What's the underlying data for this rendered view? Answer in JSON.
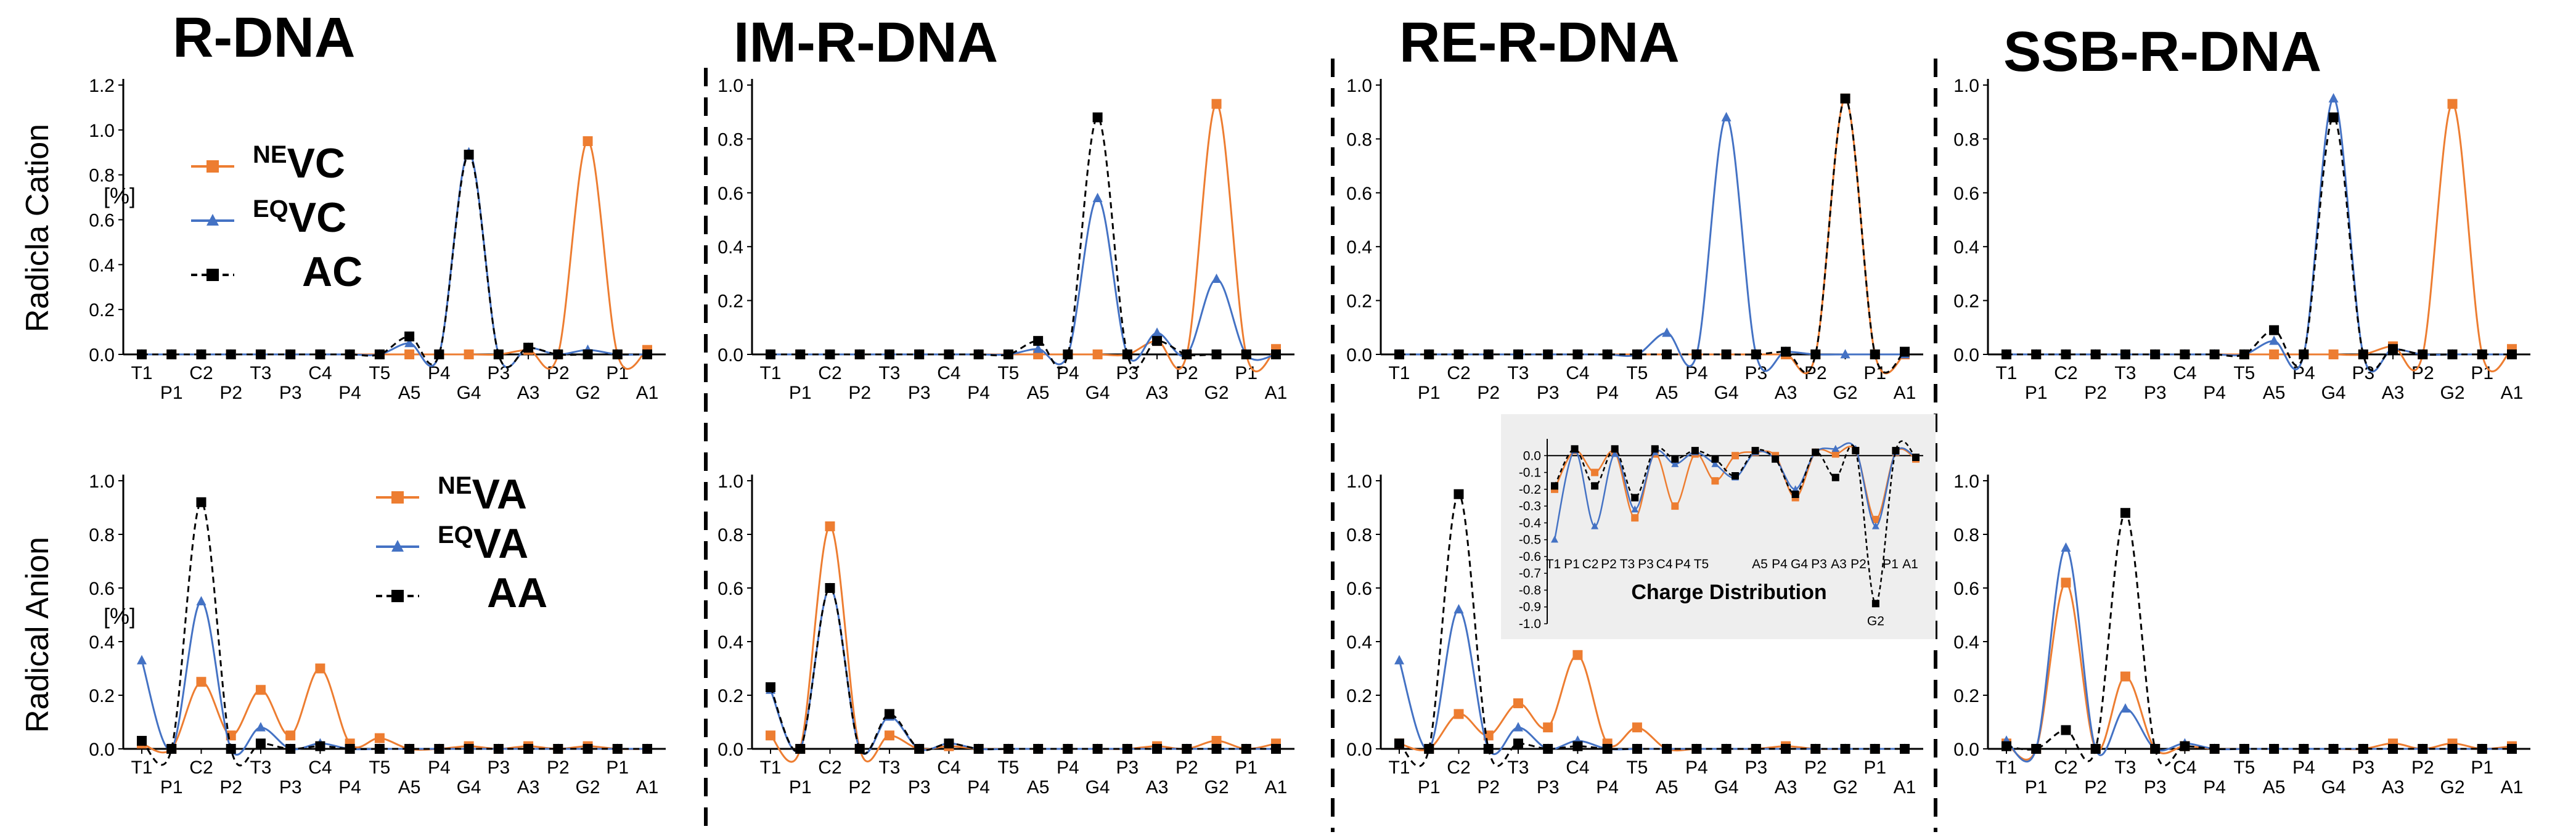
{
  "panel_titles": [
    "R-DNA",
    "IM-R-DNA",
    "RE-R-DNA",
    "SSB-R-DNA"
  ],
  "row_labels": [
    "Radicla Cation",
    "Radical Anion"
  ],
  "unit": "[%]",
  "legend_cation": [
    {
      "sup": "NE",
      "base": "VC"
    },
    {
      "sup": "EQ",
      "base": "VC"
    },
    {
      "sup": "",
      "base": "AC"
    }
  ],
  "legend_anion": [
    {
      "sup": "NE",
      "base": "VA"
    },
    {
      "sup": "EQ",
      "base": "VA"
    },
    {
      "sup": "",
      "base": "AA"
    }
  ],
  "colors": {
    "NE": "#ED7D31",
    "EQ": "#4472C4",
    "A": "#000000"
  },
  "chart_data": {
    "type": "line",
    "x": [
      "T1",
      "P1",
      "C2",
      "P2",
      "T3",
      "P3",
      "C4",
      "P4",
      "T5",
      "A5",
      "P4",
      "G4",
      "P3",
      "A3",
      "P2",
      "G2",
      "P1",
      "A1"
    ],
    "row_ylim": [
      [
        0,
        1.2
      ],
      [
        0,
        1.0
      ]
    ],
    "panels": [
      {
        "row": 0,
        "col": 0,
        "panel": "R-DNA",
        "ylim": [
          0,
          1.2
        ],
        "y_ticks": [
          "0.0",
          "0.2",
          "0.4",
          "0.6",
          "0.8",
          "1.0",
          "1.2"
        ],
        "series": {
          "NE": [
            0,
            0,
            0,
            0,
            0,
            0,
            0,
            0,
            0,
            0,
            0,
            0,
            0,
            0.02,
            0,
            0.95,
            0,
            0.02
          ],
          "EQ": [
            0,
            0,
            0,
            0,
            0,
            0,
            0,
            0,
            0,
            0.05,
            0,
            0.9,
            0,
            0.03,
            0,
            0.02,
            0,
            0
          ],
          "A": [
            0,
            0,
            0,
            0,
            0,
            0,
            0,
            0,
            0,
            0.08,
            0,
            0.89,
            0,
            0.03,
            0,
            0,
            0,
            0
          ]
        }
      },
      {
        "row": 0,
        "col": 1,
        "panel": "IM-R-DNA",
        "ylim": [
          0,
          1.0
        ],
        "y_ticks": [
          "0.0",
          "0.2",
          "0.4",
          "0.6",
          "0.8",
          "1.0"
        ],
        "series": {
          "NE": [
            0,
            0,
            0,
            0,
            0,
            0,
            0,
            0,
            0,
            0,
            0,
            0,
            0,
            0.05,
            0,
            0.93,
            0,
            0.02
          ],
          "EQ": [
            0,
            0,
            0,
            0,
            0,
            0,
            0,
            0,
            0,
            0.02,
            0,
            0.58,
            0,
            0.08,
            0,
            0.28,
            0,
            0
          ],
          "A": [
            0,
            0,
            0,
            0,
            0,
            0,
            0,
            0,
            0,
            0.05,
            0,
            0.88,
            0,
            0.05,
            0,
            0,
            0,
            0
          ]
        }
      },
      {
        "row": 0,
        "col": 2,
        "panel": "RE-R-DNA",
        "ylim": [
          0,
          1.0
        ],
        "y_ticks": [
          "0.0",
          "0.2",
          "0.4",
          "0.6",
          "0.8",
          "1.0"
        ],
        "series": {
          "NE": [
            0,
            0,
            0,
            0,
            0,
            0,
            0,
            0,
            0,
            0,
            0,
            0,
            0,
            0,
            0,
            0.95,
            0,
            0
          ],
          "EQ": [
            0,
            0,
            0,
            0,
            0,
            0,
            0,
            0,
            0,
            0.08,
            0,
            0.88,
            0,
            0.01,
            0,
            0,
            0,
            0
          ],
          "A": [
            0,
            0,
            0,
            0,
            0,
            0,
            0,
            0,
            0,
            0,
            0,
            0,
            0,
            0.01,
            0,
            0.95,
            0,
            0.01
          ]
        }
      },
      {
        "row": 0,
        "col": 3,
        "panel": "SSB-R-DNA",
        "ylim": [
          0,
          1.0
        ],
        "y_ticks": [
          "0.0",
          "0.2",
          "0.4",
          "0.6",
          "0.8",
          "1.0"
        ],
        "series": {
          "NE": [
            0,
            0,
            0,
            0,
            0,
            0,
            0,
            0,
            0,
            0,
            0,
            0,
            0,
            0.03,
            0,
            0.93,
            0,
            0.02
          ],
          "EQ": [
            0,
            0,
            0,
            0,
            0,
            0,
            0,
            0,
            0,
            0.05,
            0,
            0.95,
            0,
            0.02,
            0,
            0,
            0,
            0
          ],
          "A": [
            0,
            0,
            0,
            0,
            0,
            0,
            0,
            0,
            0,
            0.09,
            0,
            0.88,
            0,
            0.02,
            0,
            0,
            0,
            0
          ]
        }
      },
      {
        "row": 1,
        "col": 0,
        "panel": "R-DNA",
        "ylim": [
          0,
          1.0
        ],
        "y_ticks": [
          "0.0",
          "0.2",
          "0.4",
          "0.6",
          "0.8",
          "1.0"
        ],
        "series": {
          "NE": [
            0.02,
            0,
            0.25,
            0.05,
            0.22,
            0.05,
            0.3,
            0.02,
            0.04,
            0,
            0,
            0.01,
            0,
            0.01,
            0,
            0.01,
            0,
            0
          ],
          "EQ": [
            0.33,
            0,
            0.55,
            0,
            0.08,
            0,
            0.02,
            0,
            0,
            0,
            0,
            0,
            0,
            0,
            0,
            0,
            0,
            0
          ],
          "A": [
            0.03,
            0,
            0.92,
            0,
            0.02,
            0,
            0.01,
            0,
            0,
            0,
            0,
            0,
            0,
            0,
            0,
            0,
            0,
            0
          ]
        }
      },
      {
        "row": 1,
        "col": 1,
        "panel": "IM-R-DNA",
        "ylim": [
          0,
          1.0
        ],
        "y_ticks": [
          "0.0",
          "0.2",
          "0.4",
          "0.6",
          "0.8",
          "1.0"
        ],
        "series": {
          "NE": [
            0.05,
            0,
            0.83,
            0,
            0.05,
            0,
            0.01,
            0,
            0,
            0,
            0,
            0,
            0,
            0.01,
            0,
            0.03,
            0,
            0.02
          ],
          "EQ": [
            0.22,
            0,
            0.6,
            0,
            0.12,
            0,
            0.02,
            0,
            0,
            0,
            0,
            0,
            0,
            0,
            0,
            0,
            0,
            0
          ],
          "A": [
            0.23,
            0,
            0.6,
            0,
            0.13,
            0,
            0.02,
            0,
            0,
            0,
            0,
            0,
            0,
            0,
            0,
            0,
            0,
            0
          ]
        }
      },
      {
        "row": 1,
        "col": 2,
        "panel": "RE-R-DNA",
        "ylim": [
          0,
          1.0
        ],
        "y_ticks": [
          "0.0",
          "0.2",
          "0.4",
          "0.6",
          "0.8",
          "1.0"
        ],
        "series": {
          "NE": [
            0.02,
            0,
            0.13,
            0.05,
            0.17,
            0.08,
            0.35,
            0.02,
            0.08,
            0,
            0,
            0,
            0,
            0.01,
            0,
            0,
            0,
            0
          ],
          "EQ": [
            0.33,
            0,
            0.52,
            0,
            0.08,
            0,
            0.03,
            0,
            0,
            0,
            0,
            0,
            0,
            0,
            0,
            0,
            0,
            0
          ],
          "A": [
            0.02,
            0,
            0.95,
            0,
            0.02,
            0,
            0.01,
            0,
            0,
            0,
            0,
            0,
            0,
            0,
            0,
            0,
            0,
            0
          ]
        }
      },
      {
        "row": 1,
        "col": 3,
        "panel": "SSB-R-DNA",
        "ylim": [
          0,
          1.0
        ],
        "y_ticks": [
          "0.0",
          "0.2",
          "0.4",
          "0.6",
          "0.8",
          "1.0"
        ],
        "series": {
          "NE": [
            0.02,
            0,
            0.62,
            0,
            0.27,
            0,
            0.01,
            0,
            0,
            0,
            0,
            0,
            0,
            0.02,
            0,
            0.02,
            0,
            0.01
          ],
          "EQ": [
            0.03,
            0,
            0.75,
            0,
            0.15,
            0,
            0.02,
            0,
            0,
            0,
            0,
            0,
            0,
            0,
            0,
            0,
            0,
            0
          ],
          "A": [
            0.01,
            0,
            0.07,
            0,
            0.88,
            0,
            0.01,
            0,
            0,
            0,
            0,
            0,
            0,
            0,
            0,
            0,
            0,
            0
          ]
        }
      }
    ],
    "inset": {
      "title": "Charge Distribution",
      "ylim": [
        -1.0,
        0.1
      ],
      "y_ticks": [
        "0.0",
        "-0.1",
        "-0.2",
        "-0.3",
        "-0.4",
        "-0.5",
        "-0.6",
        "-0.7",
        "-0.8",
        "-0.9",
        "-1.0"
      ],
      "x_labels_left": [
        "T1",
        "P1",
        "C2",
        "P2",
        "T3",
        "P3",
        "C4",
        "P4",
        "T5"
      ],
      "x_labels_right": [
        "A5",
        "P4",
        "G4",
        "P3",
        "A3",
        "P2"
      ],
      "x_labels_end": [
        "P1",
        "A1"
      ],
      "label_G2": "G2",
      "series": {
        "NE": [
          -0.2,
          0.03,
          -0.1,
          0.02,
          -0.37,
          0.01,
          -0.3,
          0.01,
          -0.15,
          0,
          0.02,
          0,
          -0.25,
          0.02,
          0.01,
          0.03,
          -0.38,
          0.02,
          -0.02
        ],
        "EQ": [
          -0.5,
          0.03,
          -0.42,
          0.01,
          -0.32,
          0.02,
          -0.05,
          0.02,
          -0.05,
          -0.13,
          0.02,
          -0.02,
          -0.2,
          0.02,
          0.04,
          0.04,
          -0.42,
          0.02,
          -0.01
        ],
        "A": [
          -0.18,
          0.04,
          -0.18,
          0.04,
          -0.25,
          0.04,
          -0.02,
          0.03,
          -0.02,
          -0.12,
          0.03,
          -0.02,
          -0.23,
          0.02,
          -0.13,
          0.03,
          -0.88,
          0.03,
          -0.01
        ]
      }
    }
  }
}
